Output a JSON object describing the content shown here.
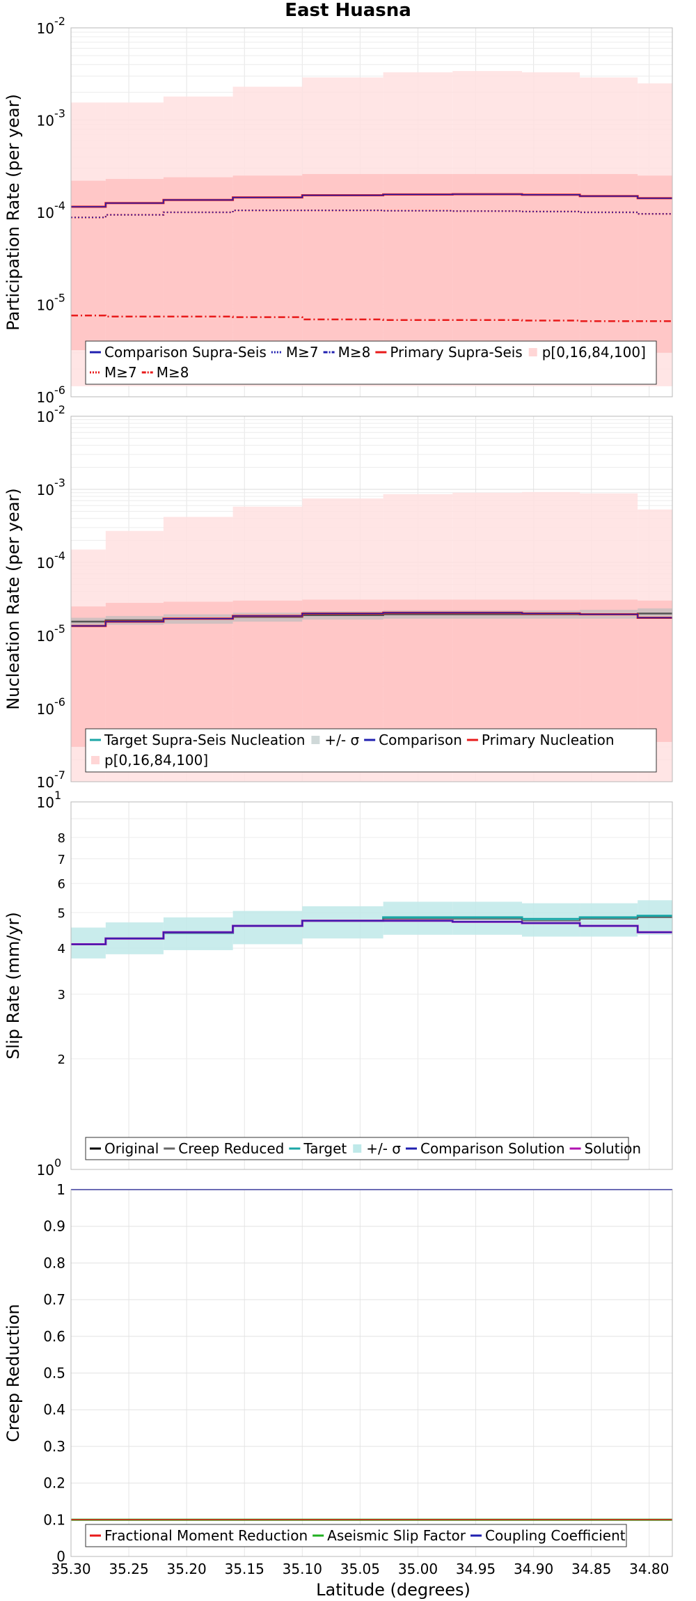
{
  "title": "East Huasna",
  "x_axis_label": "Latitude (degrees)",
  "x_tick_labels": [
    "35.30",
    "35.25",
    "35.20",
    "35.15",
    "35.10",
    "35.05",
    "35.00",
    "34.95",
    "34.90",
    "34.85",
    "34.80"
  ],
  "chart_data": [
    {
      "type": "line",
      "ylabel": "Participation Rate (per year)",
      "yscale": "log",
      "ylim": [
        1e-06,
        0.01
      ],
      "y_tick_labels": [
        {
          "base": "10",
          "exp": "-6"
        },
        {
          "base": "10",
          "exp": "-5"
        },
        {
          "base": "10",
          "exp": "-4"
        },
        {
          "base": "10",
          "exp": "-3"
        },
        {
          "base": "10",
          "exp": "-2"
        }
      ],
      "x_bins": [
        35.3,
        35.27,
        35.22,
        35.16,
        35.1,
        35.03,
        34.97,
        34.91,
        34.86,
        34.81
      ],
      "x_end": 34.78,
      "bands": [
        {
          "name": "p[0,16,84,100]",
          "color": "#ffe0e0",
          "lower": [
            1.3e-06,
            1.3e-06,
            1.3e-06,
            1.3e-06,
            1.3e-06,
            1.3e-06,
            1.3e-06,
            1.3e-06,
            1.3e-06,
            1.3e-06
          ],
          "upper": [
            0.00155,
            0.00155,
            0.0018,
            0.0023,
            0.0029,
            0.0033,
            0.0034,
            0.0033,
            0.0029,
            0.0025
          ]
        },
        {
          "name": "p[0,16,84,100]",
          "color": "#ffc2c2",
          "lower": [
            3.2e-06,
            3.1e-06,
            3.1e-06,
            3.1e-06,
            3e-06,
            3e-06,
            3e-06,
            3e-06,
            3e-06,
            3e-06
          ],
          "upper": [
            0.00022,
            0.00023,
            0.00024,
            0.00025,
            0.00026,
            0.00026,
            0.00026,
            0.00026,
            0.00026,
            0.00025
          ]
        }
      ],
      "series": [
        {
          "name": "Primary Supra-Seis",
          "color": "#e81a1a",
          "style": "solid",
          "width": 3,
          "values": [
            0.000115,
            0.000126,
            0.000136,
            0.000145,
            0.000153,
            0.000156,
            0.000157,
            0.000155,
            0.00015,
            0.000142
          ]
        },
        {
          "name": "M≥7",
          "color": "#e81a1a",
          "style": "dot",
          "width": 2.5,
          "values": [
            8.8e-05,
            9.4e-05,
            0.0001,
            0.000105,
            0.000105,
            0.000104,
            0.000103,
            0.000102,
            0.0001,
            9.6e-05
          ]
        },
        {
          "name": "M≥8",
          "color": "#e81a1a",
          "style": "dashdot",
          "width": 2.5,
          "values": [
            7.6e-06,
            7.4e-06,
            7.4e-06,
            7.3e-06,
            6.9e-06,
            6.8e-06,
            6.8e-06,
            6.7e-06,
            6.6e-06,
            6.6e-06
          ]
        },
        {
          "name": "Comparison Supra-Seis",
          "color": "#2020b0",
          "style": "solid",
          "width": 1.5,
          "values": [
            0.000115,
            0.000126,
            0.000136,
            0.000145,
            0.000153,
            0.000156,
            0.000157,
            0.000155,
            0.00015,
            0.000142
          ]
        },
        {
          "name": "M≥7",
          "color": "#2020b0",
          "style": "dot",
          "width": 1.5,
          "values": [
            8.8e-05,
            9.4e-05,
            0.0001,
            0.000105,
            0.000105,
            0.000104,
            0.000103,
            0.000102,
            0.0001,
            9.6e-05
          ]
        }
      ],
      "legend": {
        "placement": "bottom-left",
        "rows": [
          [
            {
              "label": "Comparison Supra-Seis",
              "kind": "line",
              "color": "#2020b0",
              "style": "solid"
            },
            {
              "label": "M≥7",
              "kind": "line",
              "color": "#2020b0",
              "style": "dot"
            },
            {
              "label": "M≥8",
              "kind": "line",
              "color": "#2020b0",
              "style": "dashdot"
            },
            {
              "label": "Primary Supra-Seis",
              "kind": "line",
              "color": "#e81a1a",
              "style": "solid"
            },
            {
              "label": "p[0,16,84,100]",
              "kind": "box",
              "color": "#ffd6d6"
            }
          ],
          [
            {
              "label": "M≥7",
              "kind": "line",
              "color": "#e81a1a",
              "style": "dot"
            },
            {
              "label": "M≥8",
              "kind": "line",
              "color": "#e81a1a",
              "style": "dashdot"
            }
          ]
        ]
      }
    },
    {
      "type": "line",
      "ylabel": "Nucleation Rate (per year)",
      "yscale": "log",
      "ylim": [
        1e-07,
        0.01
      ],
      "y_tick_labels": [
        {
          "base": "10",
          "exp": "-7"
        },
        {
          "base": "10",
          "exp": "-6"
        },
        {
          "base": "10",
          "exp": "-5"
        },
        {
          "base": "10",
          "exp": "-4"
        },
        {
          "base": "10",
          "exp": "-3"
        },
        {
          "base": "10",
          "exp": "-2"
        }
      ],
      "x_bins": [
        35.3,
        35.27,
        35.22,
        35.16,
        35.1,
        35.03,
        34.97,
        34.91,
        34.86,
        34.81
      ],
      "x_end": 34.78,
      "bands": [
        {
          "name": "p[0,16,84,100]",
          "color": "#ffe0e0",
          "lower": [
            1e-07,
            1e-07,
            1e-07,
            1e-07,
            1e-07,
            1e-07,
            1e-07,
            1e-07,
            1e-07,
            1e-07
          ],
          "upper": [
            0.00015,
            0.00027,
            0.00042,
            0.00058,
            0.00075,
            0.00086,
            0.0009,
            0.00092,
            0.00088,
            0.00053
          ]
        },
        {
          "name": "p[0,16,84,100]",
          "color": "#ffc2c2",
          "lower": [
            3e-07,
            3e-07,
            3e-07,
            3e-07,
            3e-07,
            3e-07,
            3e-07,
            3e-07,
            3e-07,
            3.5e-07
          ],
          "upper": [
            2.5e-05,
            2.8e-05,
            2.9e-05,
            3e-05,
            3.1e-05,
            3.1e-05,
            3.1e-05,
            3.1e-05,
            3.1e-05,
            3e-05
          ]
        },
        {
          "name": "+/- σ",
          "color": "#bdbdbd",
          "lower": [
            1.35e-05,
            1.4e-05,
            1.45e-05,
            1.55e-05,
            1.65e-05,
            1.7e-05,
            1.7e-05,
            1.7e-05,
            1.7e-05,
            1.75e-05
          ],
          "upper": [
            1.75e-05,
            1.85e-05,
            1.95e-05,
            2.05e-05,
            2.15e-05,
            2.2e-05,
            2.2e-05,
            2.2e-05,
            2.25e-05,
            2.35e-05
          ]
        }
      ],
      "series": [
        {
          "name": "Target Supra-Seis Nucleation",
          "color": "#555555",
          "style": "solid",
          "width": 2.5,
          "values": [
            1.55e-05,
            1.62e-05,
            1.7e-05,
            1.8e-05,
            1.9e-05,
            1.95e-05,
            1.95e-05,
            1.95e-05,
            1.95e-05,
            2e-05
          ]
        },
        {
          "name": "Primary Nucleation",
          "color": "#e81a1a",
          "style": "solid",
          "width": 3,
          "values": [
            1.35e-05,
            1.55e-05,
            1.7e-05,
            1.85e-05,
            2e-05,
            2.05e-05,
            2.05e-05,
            2e-05,
            1.95e-05,
            1.75e-05
          ]
        },
        {
          "name": "Comparison",
          "color": "#2020b0",
          "style": "solid",
          "width": 1.5,
          "values": [
            1.35e-05,
            1.55e-05,
            1.7e-05,
            1.85e-05,
            2e-05,
            2.05e-05,
            2.05e-05,
            2e-05,
            1.95e-05,
            1.75e-05
          ]
        }
      ],
      "legend": {
        "placement": "bottom-left",
        "rows": [
          [
            {
              "label": "Target Supra-Seis Nucleation",
              "kind": "line",
              "color": "#1aa6a6",
              "style": "solid"
            },
            {
              "label": "+/- σ",
              "kind": "box",
              "color": "#cfd8d8"
            },
            {
              "label": "Comparison",
              "kind": "line",
              "color": "#2020b0",
              "style": "solid"
            },
            {
              "label": "Primary Nucleation",
              "kind": "line",
              "color": "#e81a1a",
              "style": "solid"
            }
          ],
          [
            {
              "label": "p[0,16,84,100]",
              "kind": "box",
              "color": "#ffd6d6"
            }
          ]
        ]
      }
    },
    {
      "type": "line",
      "ylabel": "Slip Rate (mm/yr)",
      "yscale": "log",
      "ylim": [
        1,
        10
      ],
      "y_tick_labels": [
        {
          "base": "10",
          "exp": "0",
          "value": 1,
          "sup": true
        },
        {
          "label": "2",
          "value": 2
        },
        {
          "label": "3",
          "value": 3
        },
        {
          "label": "4",
          "value": 4
        },
        {
          "label": "5",
          "value": 5
        },
        {
          "label": "6",
          "value": 6
        },
        {
          "label": "7",
          "value": 7
        },
        {
          "label": "8",
          "value": 8
        },
        {
          "base": "10",
          "exp": "1",
          "value": 10,
          "sup": true
        }
      ],
      "x_bins": [
        35.3,
        35.27,
        35.22,
        35.16,
        35.1,
        35.03,
        34.97,
        34.91,
        34.86,
        34.81
      ],
      "x_end": 34.78,
      "bands": [
        {
          "name": "+/- σ",
          "color": "#bfe9e9",
          "lower": [
            3.75,
            3.85,
            3.95,
            4.1,
            4.25,
            4.35,
            4.35,
            4.3,
            4.3,
            4.35
          ],
          "upper": [
            4.55,
            4.7,
            4.85,
            5.05,
            5.2,
            5.35,
            5.35,
            5.3,
            5.3,
            5.4
          ]
        }
      ],
      "series": [
        {
          "name": "Target",
          "color": "#1aa6a6",
          "style": "solid",
          "width": 3,
          "values": [
            4.1,
            4.25,
            4.4,
            4.6,
            4.75,
            4.85,
            4.85,
            4.8,
            4.85,
            4.9
          ]
        },
        {
          "name": "Original",
          "color": "#000000",
          "style": "solid",
          "width": 1.5,
          "values": [
            4.1,
            4.25,
            4.4,
            4.6,
            4.75,
            4.8,
            4.8,
            4.75,
            4.8,
            4.85
          ]
        },
        {
          "name": "Creep Reduced",
          "color": "#666666",
          "style": "solid",
          "width": 1.5,
          "values": [
            4.1,
            4.25,
            4.4,
            4.6,
            4.75,
            4.8,
            4.8,
            4.75,
            4.8,
            4.85
          ]
        },
        {
          "name": "Solution",
          "color": "#b012b0",
          "style": "solid",
          "width": 3,
          "values": [
            4.1,
            4.25,
            4.42,
            4.6,
            4.75,
            4.75,
            4.72,
            4.68,
            4.6,
            4.42
          ]
        },
        {
          "name": "Comparison Solution",
          "color": "#2020b0",
          "style": "solid",
          "width": 1.5,
          "values": [
            4.1,
            4.25,
            4.42,
            4.6,
            4.75,
            4.75,
            4.72,
            4.68,
            4.6,
            4.42
          ]
        }
      ],
      "legend": {
        "placement": "bottom-left",
        "rows": [
          [
            {
              "label": "Original",
              "kind": "line",
              "color": "#000000",
              "style": "solid"
            },
            {
              "label": "Creep Reduced",
              "kind": "line",
              "color": "#666666",
              "style": "solid"
            },
            {
              "label": "Target",
              "kind": "line",
              "color": "#1aa6a6",
              "style": "solid"
            },
            {
              "label": "+/- σ",
              "kind": "box",
              "color": "#bfe9e9"
            },
            {
              "label": "Comparison Solution",
              "kind": "line",
              "color": "#2020b0",
              "style": "solid"
            },
            {
              "label": "Solution",
              "kind": "line",
              "color": "#b012b0",
              "style": "solid"
            }
          ]
        ]
      }
    },
    {
      "type": "line",
      "ylabel": "Creep Reduction",
      "yscale": "linear",
      "ylim": [
        0,
        1
      ],
      "y_tick_labels": [
        {
          "label": "0",
          "value": 0
        },
        {
          "label": "0.1",
          "value": 0.1
        },
        {
          "label": "0.2",
          "value": 0.2
        },
        {
          "label": "0.3",
          "value": 0.3
        },
        {
          "label": "0.4",
          "value": 0.4
        },
        {
          "label": "0.5",
          "value": 0.5
        },
        {
          "label": "0.6",
          "value": 0.6
        },
        {
          "label": "0.7",
          "value": 0.7
        },
        {
          "label": "0.8",
          "value": 0.8
        },
        {
          "label": "0.9",
          "value": 0.9
        },
        {
          "label": "1",
          "value": 1
        }
      ],
      "x_bins": [
        35.3,
        34.78
      ],
      "x_end": 34.78,
      "bands": [],
      "series": [
        {
          "name": "Coupling Coefficient",
          "color": "#2020b0",
          "style": "solid",
          "width": 2,
          "values": [
            1.0
          ]
        },
        {
          "name": "Aseismic Slip Factor",
          "color": "#20b020",
          "style": "solid",
          "width": 3,
          "values": [
            0.1
          ]
        },
        {
          "name": "Fractional Moment Reduction",
          "color": "#e81a1a",
          "style": "solid",
          "width": 1.5,
          "values": [
            0.1
          ]
        }
      ],
      "legend": {
        "placement": "bottom-left",
        "rows": [
          [
            {
              "label": "Fractional Moment Reduction",
              "kind": "line",
              "color": "#e81a1a",
              "style": "solid"
            },
            {
              "label": "Aseismic Slip Factor",
              "kind": "line",
              "color": "#20b020",
              "style": "solid"
            },
            {
              "label": "Coupling Coefficient",
              "kind": "line",
              "color": "#2020b0",
              "style": "solid"
            }
          ]
        ]
      }
    }
  ]
}
